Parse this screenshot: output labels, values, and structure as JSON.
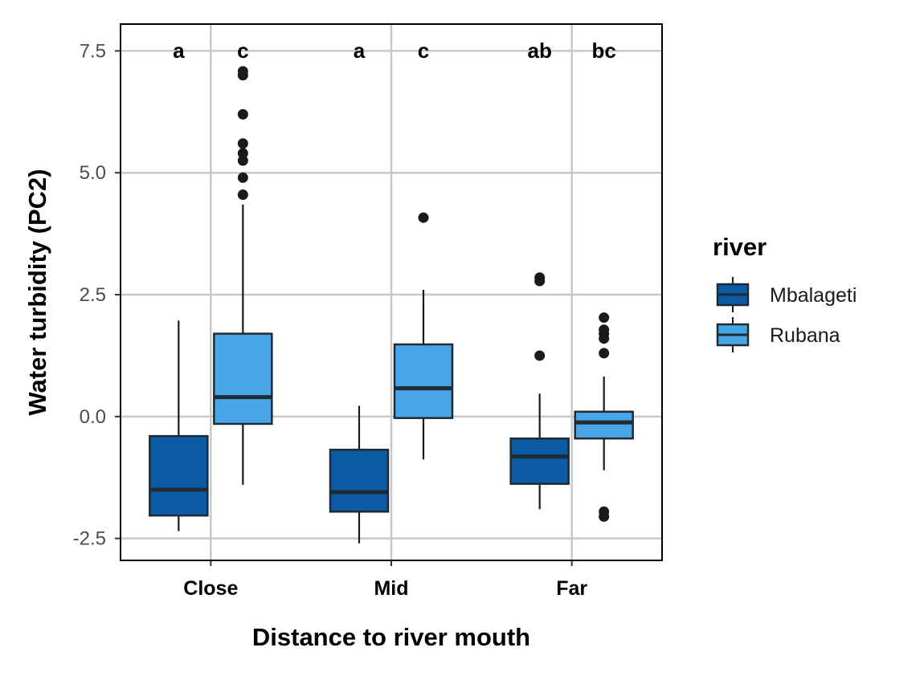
{
  "chart_data": {
    "type": "box",
    "xlabel": "Distance to river mouth",
    "ylabel": "Water turbidity (PC2)",
    "categories": [
      "Close",
      "Mid",
      "Far"
    ],
    "ylim": [
      -2.95,
      8.05
    ],
    "yticks": [
      -2.5,
      0.0,
      2.5,
      5.0,
      7.5
    ],
    "ytick_labels": [
      "-2.5",
      "0.0",
      "2.5",
      "5.0",
      "7.5"
    ],
    "grid": true,
    "legend": {
      "title": "river",
      "position": "right",
      "entries": [
        "Mbalageti",
        "Rubana"
      ]
    },
    "series": [
      {
        "name": "Mbalageti",
        "color": "#0b5ca5",
        "boxes": [
          {
            "category": "Close",
            "min": -2.35,
            "q1": -2.03,
            "median": -1.5,
            "q3": -0.4,
            "max": 1.97,
            "outliers": [],
            "letter": "a"
          },
          {
            "category": "Mid",
            "min": -2.6,
            "q1": -1.95,
            "median": -1.55,
            "q3": -0.68,
            "max": 0.22,
            "outliers": [],
            "letter": "a"
          },
          {
            "category": "Far",
            "min": -1.9,
            "q1": -1.38,
            "median": -0.82,
            "q3": -0.45,
            "max": 0.47,
            "outliers": [
              1.25,
              2.78,
              2.85
            ],
            "letter": "ab"
          }
        ]
      },
      {
        "name": "Rubana",
        "color": "#48a5e6",
        "boxes": [
          {
            "category": "Close",
            "min": -1.4,
            "q1": -0.15,
            "median": 0.4,
            "q3": 1.7,
            "max": 4.35,
            "outliers": [
              4.55,
              4.9,
              5.25,
              5.4,
              5.6,
              6.2,
              7.0,
              7.08
            ],
            "letter": "c"
          },
          {
            "category": "Mid",
            "min": -0.88,
            "q1": -0.03,
            "median": 0.58,
            "q3": 1.48,
            "max": 2.6,
            "outliers": [
              4.08
            ],
            "letter": "c"
          },
          {
            "category": "Far",
            "min": -1.1,
            "q1": -0.45,
            "median": -0.12,
            "q3": 0.1,
            "max": 0.82,
            "outliers": [
              -2.05,
              -1.95,
              1.3,
              1.6,
              1.7,
              1.78,
              2.03
            ],
            "letter": "bc"
          }
        ]
      }
    ]
  }
}
